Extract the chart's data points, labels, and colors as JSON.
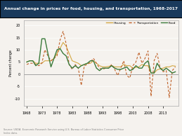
{
  "title": "Annual change in prices for food, housing, and transportation, 1968-2017",
  "title_bg": "#1a3a5c",
  "ylabel": "Percent change",
  "source": "Source: USDA, Economic Research Service using U.S. Bureau of Labor Statistics Consumer Price\nIndex data.",
  "years": [
    1968,
    1969,
    1970,
    1971,
    1972,
    1973,
    1974,
    1975,
    1976,
    1977,
    1978,
    1979,
    1980,
    1981,
    1982,
    1983,
    1984,
    1985,
    1986,
    1987,
    1988,
    1989,
    1990,
    1991,
    1992,
    1993,
    1994,
    1995,
    1996,
    1997,
    1998,
    1999,
    2000,
    2001,
    2002,
    2003,
    2004,
    2005,
    2006,
    2007,
    2008,
    2009,
    2010,
    2011,
    2012,
    2013,
    2014,
    2015,
    2016,
    2017
  ],
  "housing": [
    5.0,
    5.5,
    5.5,
    4.5,
    4.5,
    4.5,
    5.5,
    5.5,
    5.5,
    6.5,
    8.5,
    10.5,
    13.0,
    11.5,
    8.5,
    5.5,
    5.0,
    4.5,
    3.5,
    4.0,
    4.5,
    4.5,
    5.5,
    4.5,
    3.5,
    3.0,
    3.0,
    3.2,
    3.5,
    3.0,
    3.0,
    3.0,
    4.0,
    3.5,
    3.5,
    2.5,
    2.8,
    3.0,
    4.0,
    3.5,
    3.5,
    0.5,
    0.5,
    1.8,
    2.2,
    2.5,
    3.0,
    3.0,
    3.5,
    3.3
  ],
  "transportation": [
    4.0,
    4.5,
    4.5,
    4.0,
    3.5,
    4.5,
    10.0,
    7.5,
    5.5,
    6.5,
    7.5,
    14.0,
    17.5,
    12.5,
    4.0,
    2.0,
    4.0,
    2.5,
    -4.5,
    3.5,
    4.0,
    5.0,
    6.5,
    4.5,
    2.5,
    2.0,
    2.5,
    2.5,
    4.0,
    2.0,
    -0.5,
    2.5,
    5.5,
    -0.5,
    -1.5,
    3.5,
    5.0,
    9.0,
    4.5,
    6.5,
    9.5,
    -9.0,
    5.5,
    8.5,
    2.5,
    1.0,
    1.5,
    -9.5,
    1.5,
    3.0
  ],
  "food": [
    5.0,
    5.5,
    5.5,
    3.5,
    4.5,
    14.5,
    14.5,
    8.5,
    3.0,
    6.5,
    10.0,
    10.5,
    8.5,
    7.5,
    4.0,
    2.5,
    3.5,
    2.5,
    3.5,
    4.0,
    4.5,
    5.5,
    5.5,
    2.5,
    1.5,
    2.5,
    2.5,
    2.5,
    3.5,
    2.5,
    2.0,
    2.0,
    2.5,
    3.0,
    1.5,
    2.0,
    3.5,
    2.5,
    2.5,
    4.5,
    5.5,
    0.5,
    0.5,
    4.5,
    2.5,
    1.5,
    2.5,
    1.5,
    0.5,
    1.0
  ],
  "xticks": [
    1968,
    1973,
    1978,
    1983,
    1988,
    1993,
    1998,
    2003,
    2008,
    2013
  ],
  "xtick_labels": [
    "1968",
    "1973",
    "1978",
    "1983",
    "1988",
    "1993",
    "1998",
    "2003",
    "2008",
    "2013"
  ],
  "ylim": [
    -13,
    22
  ],
  "yticks": [
    -10,
    -5,
    0,
    5,
    10,
    15,
    20
  ],
  "housing_color": "#d4a843",
  "transportation_color": "#c0622a",
  "food_color": "#3a7a3a",
  "bg_color": "#f5f2ee",
  "plot_bg": "#f5f2ee"
}
